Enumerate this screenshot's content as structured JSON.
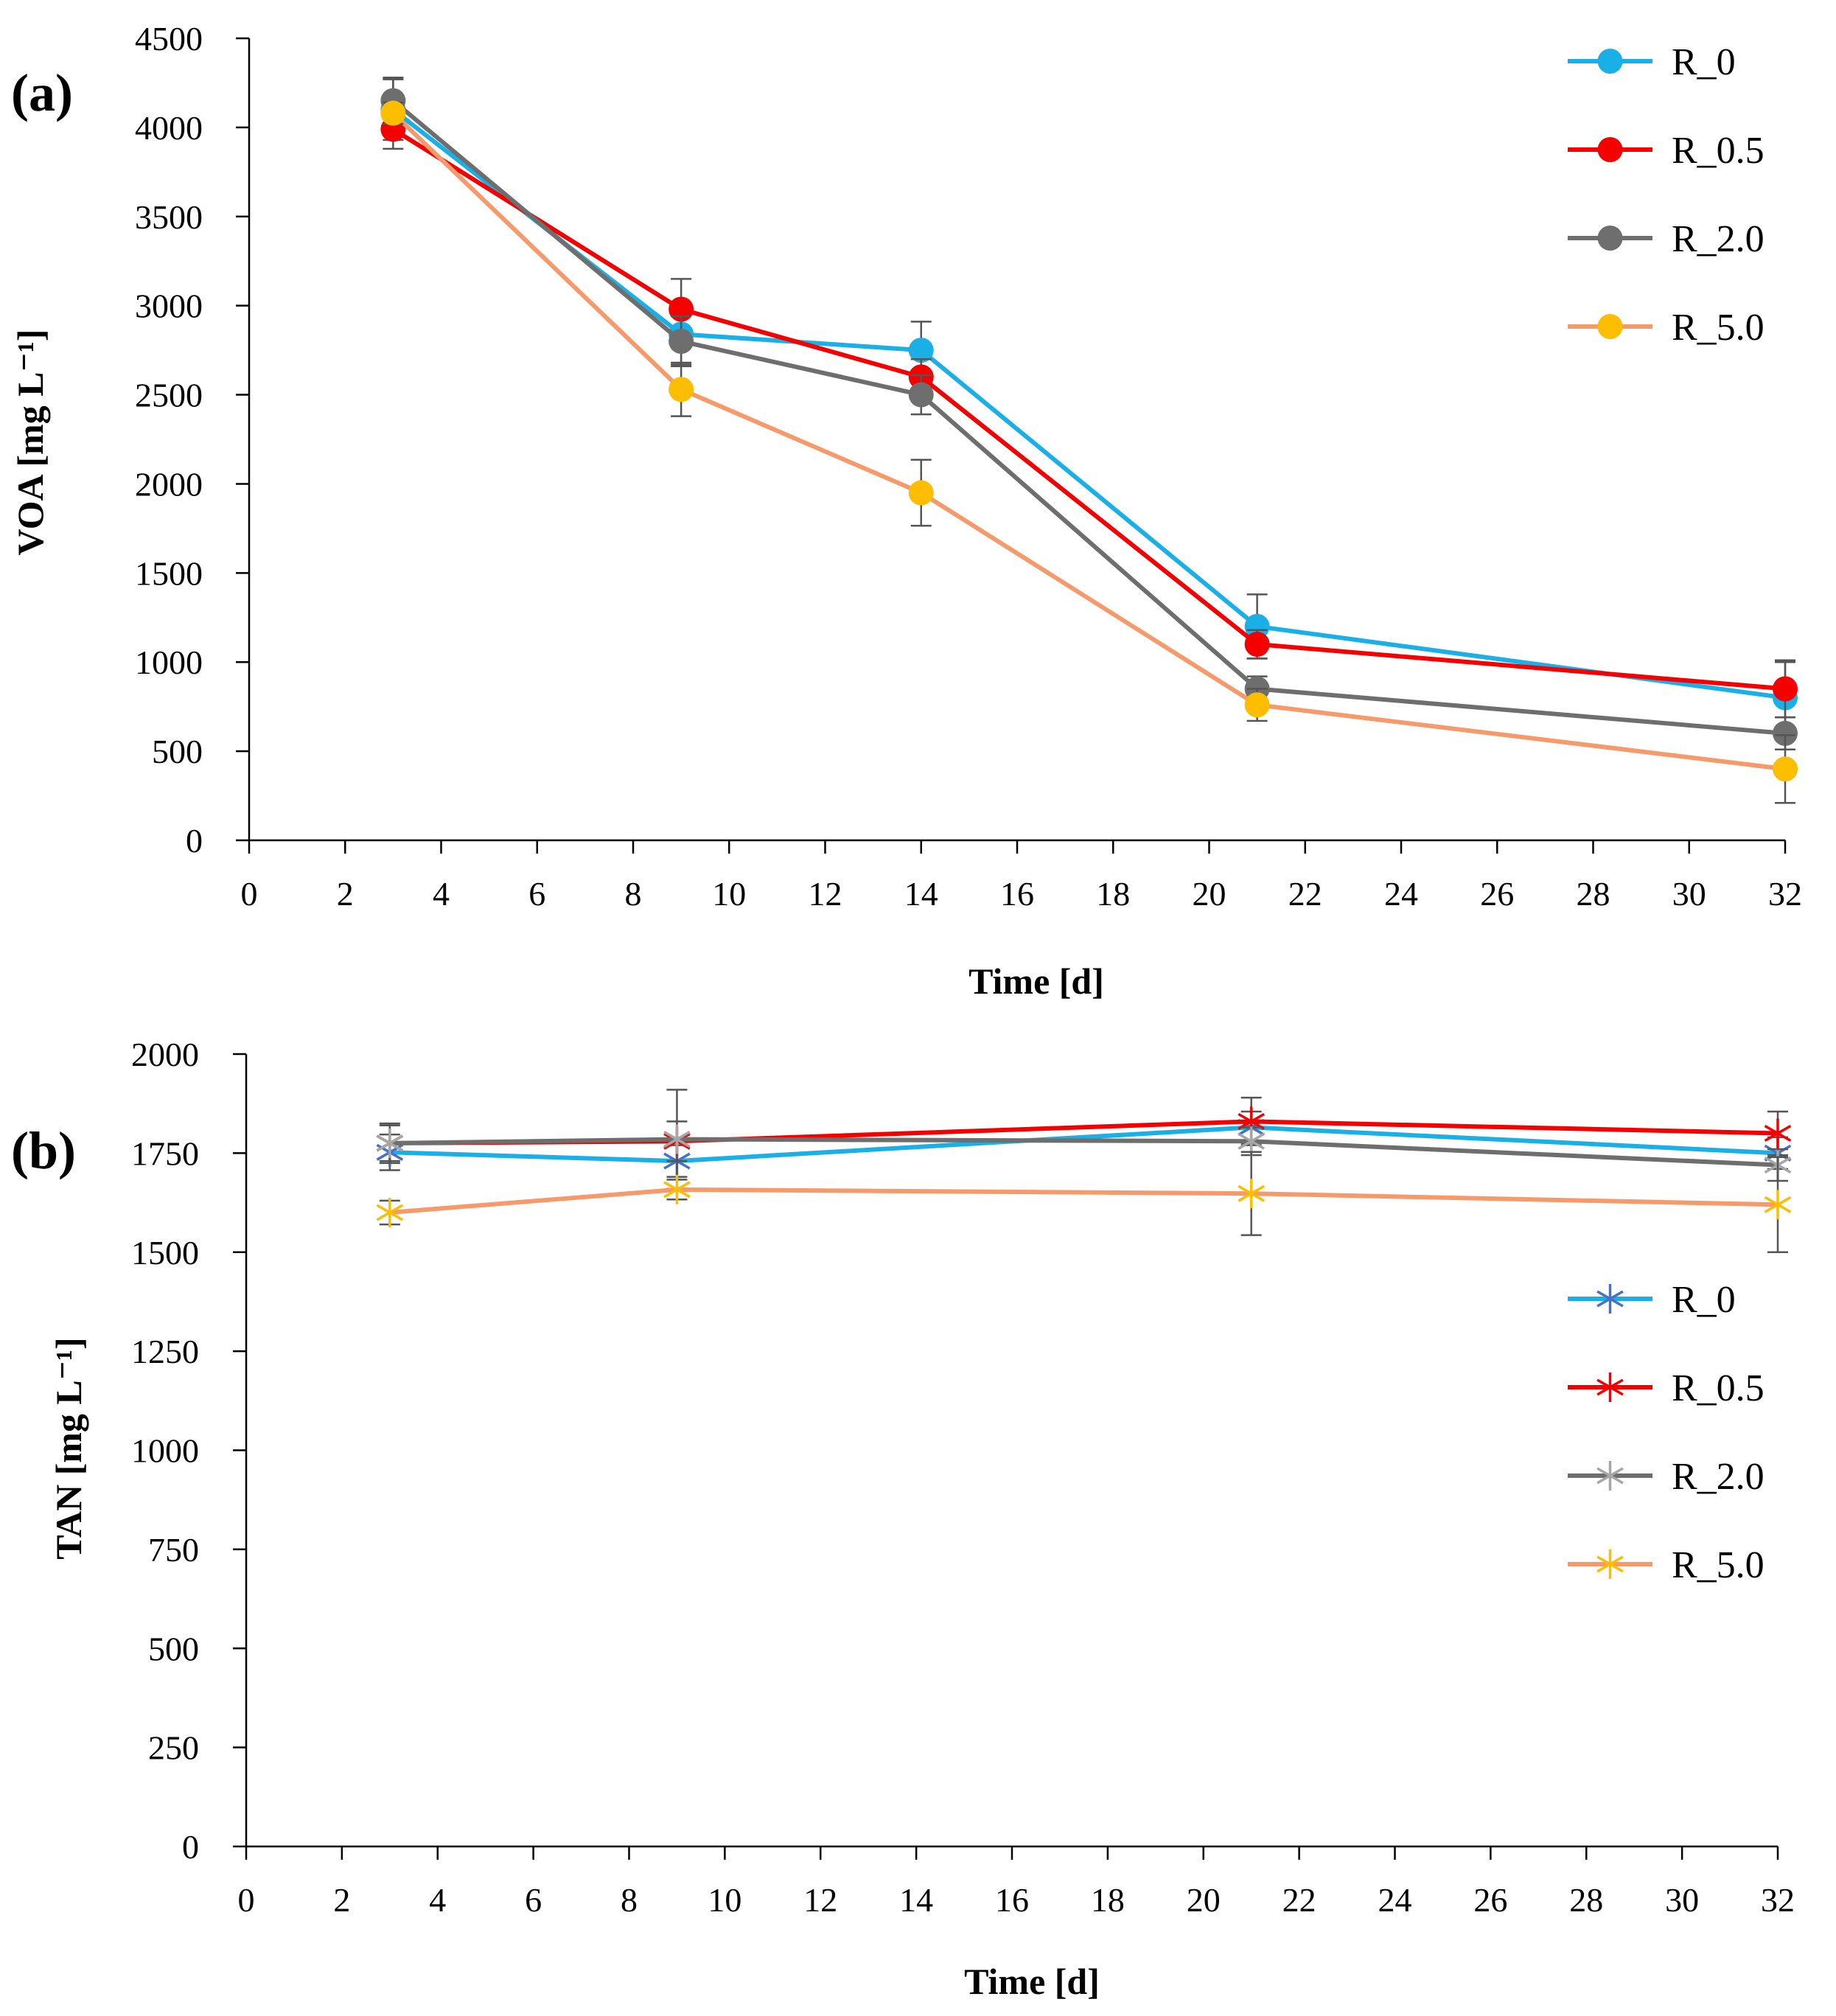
{
  "chart_data": [
    {
      "type": "line",
      "panel_label": "(a)",
      "marker": "circle",
      "xlabel": "Time [d]",
      "ylabel": "VOA [mg L⁻¹]",
      "xlim": [
        0,
        32
      ],
      "ylim": [
        0,
        4500
      ],
      "xticks": [
        0,
        2,
        4,
        6,
        8,
        10,
        12,
        14,
        16,
        18,
        20,
        22,
        24,
        26,
        28,
        30,
        32
      ],
      "yticks": [
        0,
        500,
        1000,
        1500,
        2000,
        2500,
        3000,
        3500,
        4000,
        4500
      ],
      "legend_position": "top-right",
      "x": [
        3,
        9,
        14,
        21,
        32
      ],
      "series": [
        {
          "name": "R_0",
          "line_color": "#1AAFE6",
          "marker_color": "#1AAFE6",
          "values": [
            4100,
            2840,
            2750,
            1200,
            800
          ],
          "errors": [
            170,
            170,
            160,
            180,
            200
          ]
        },
        {
          "name": "R_0.5",
          "line_color": "#F40000",
          "marker_color": "#F40000",
          "values": [
            3990,
            2980,
            2600,
            1100,
            850
          ],
          "errors": [
            110,
            170,
            100,
            80,
            160
          ]
        },
        {
          "name": "R_2.0",
          "line_color": "#6E6E6E",
          "marker_color": "#6E6E6E",
          "values": [
            4150,
            2800,
            2500,
            850,
            600
          ],
          "errors": [
            130,
            140,
            110,
            70,
            90
          ]
        },
        {
          "name": "R_5.0",
          "line_color": "#F79A6B",
          "marker_color": "#FDBD00",
          "values": [
            4080,
            2530,
            1950,
            760,
            400
          ],
          "errors": [
            60,
            150,
            185,
            90,
            190
          ]
        }
      ]
    },
    {
      "type": "line",
      "panel_label": "(b)",
      "marker": "asterisk",
      "xlabel": "Time [d]",
      "ylabel": "TAN [mg L⁻¹]",
      "xlim": [
        0,
        32
      ],
      "ylim": [
        0,
        2000
      ],
      "xticks": [
        0,
        2,
        4,
        6,
        8,
        10,
        12,
        14,
        16,
        18,
        20,
        22,
        24,
        26,
        28,
        30,
        32
      ],
      "yticks": [
        0,
        250,
        500,
        750,
        1000,
        1250,
        1500,
        1750,
        2000
      ],
      "legend_position": "right",
      "x": [
        3,
        9,
        21,
        32
      ],
      "series": [
        {
          "name": "R_0",
          "line_color": "#1AAFE6",
          "marker_color": "#4472C4",
          "values": [
            1752,
            1730,
            1815,
            1750
          ],
          "errors": [
            45,
            40,
            40,
            40
          ]
        },
        {
          "name": "R_0.5",
          "line_color": "#F40000",
          "marker_color": "#F40000",
          "values": [
            1775,
            1780,
            1830,
            1800
          ],
          "errors": [
            45,
            50,
            60,
            55
          ]
        },
        {
          "name": "R_2.0",
          "line_color": "#6E6E6E",
          "marker_color": "#A6A6A6",
          "values": [
            1775,
            1785,
            1780,
            1720
          ],
          "errors": [
            50,
            125,
            35,
            40
          ]
        },
        {
          "name": "R_5.0",
          "line_color": "#F79A6B",
          "marker_color": "#FDBD00",
          "values": [
            1600,
            1658,
            1648,
            1620
          ],
          "errors": [
            30,
            25,
            105,
            120
          ]
        }
      ]
    }
  ]
}
